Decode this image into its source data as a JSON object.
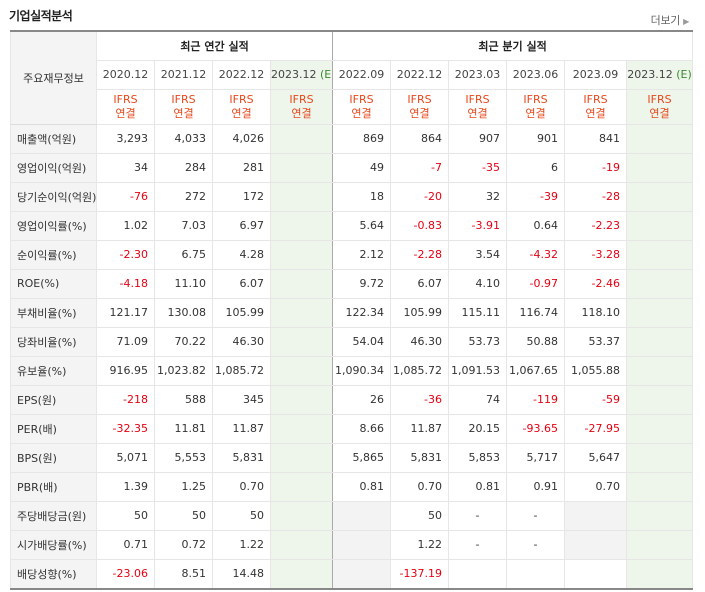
{
  "header": {
    "title": "기업실적분석",
    "more_label": "더보기"
  },
  "table": {
    "corner_label": "주요재무정보",
    "annual_group": "최근 연간 실적",
    "quarter_group": "최근 분기 실적",
    "annual_periods": [
      "2020.12",
      "2021.12",
      "2022.12",
      "2023.12"
    ],
    "quarter_periods": [
      "2022.09",
      "2022.12",
      "2023.03",
      "2023.06",
      "2023.09",
      "2023.12"
    ],
    "estimate_mark": "(E)",
    "ifrs_line1": "IFRS",
    "ifrs_line2": "연결",
    "rows": [
      {
        "label": "매출액(억원)",
        "values": [
          "3,293",
          "4,033",
          "4,026",
          "",
          "869",
          "864",
          "907",
          "901",
          "841",
          ""
        ]
      },
      {
        "label": "영업이익(억원)",
        "values": [
          "34",
          "284",
          "281",
          "",
          "49",
          "-7",
          "-35",
          "6",
          "-19",
          ""
        ]
      },
      {
        "label": "당기순이익(억원)",
        "values": [
          "-76",
          "272",
          "172",
          "",
          "18",
          "-20",
          "32",
          "-39",
          "-28",
          ""
        ]
      },
      {
        "label": "영업이익률(%)",
        "values": [
          "1.02",
          "7.03",
          "6.97",
          "",
          "5.64",
          "-0.83",
          "-3.91",
          "0.64",
          "-2.23",
          ""
        ]
      },
      {
        "label": "순이익률(%)",
        "values": [
          "-2.30",
          "6.75",
          "4.28",
          "",
          "2.12",
          "-2.28",
          "3.54",
          "-4.32",
          "-3.28",
          ""
        ]
      },
      {
        "label": "ROE(%)",
        "values": [
          "-4.18",
          "11.10",
          "6.07",
          "",
          "9.72",
          "6.07",
          "4.10",
          "-0.97",
          "-2.46",
          ""
        ]
      },
      {
        "label": "부채비율(%)",
        "values": [
          "121.17",
          "130.08",
          "105.99",
          "",
          "122.34",
          "105.99",
          "115.11",
          "116.74",
          "118.10",
          ""
        ]
      },
      {
        "label": "당좌비율(%)",
        "values": [
          "71.09",
          "70.22",
          "46.30",
          "",
          "54.04",
          "46.30",
          "53.73",
          "50.88",
          "53.37",
          ""
        ]
      },
      {
        "label": "유보율(%)",
        "values": [
          "916.95",
          "1,023.82",
          "1,085.72",
          "",
          "1,090.34",
          "1,085.72",
          "1,091.53",
          "1,067.65",
          "1,055.88",
          ""
        ]
      },
      {
        "label": "EPS(원)",
        "values": [
          "-218",
          "588",
          "345",
          "",
          "26",
          "-36",
          "74",
          "-119",
          "-59",
          ""
        ]
      },
      {
        "label": "PER(배)",
        "values": [
          "-32.35",
          "11.81",
          "11.87",
          "",
          "8.66",
          "11.87",
          "20.15",
          "-93.65",
          "-27.95",
          ""
        ]
      },
      {
        "label": "BPS(원)",
        "values": [
          "5,071",
          "5,553",
          "5,831",
          "",
          "5,865",
          "5,831",
          "5,853",
          "5,717",
          "5,647",
          ""
        ]
      },
      {
        "label": "PBR(배)",
        "values": [
          "1.39",
          "1.25",
          "0.70",
          "",
          "0.81",
          "0.70",
          "0.81",
          "0.91",
          "0.70",
          ""
        ]
      },
      {
        "label": "주당배당금(원)",
        "values": [
          "50",
          "50",
          "50",
          "",
          "",
          "50",
          "-",
          "-",
          "",
          ""
        ]
      },
      {
        "label": "시가배당률(%)",
        "values": [
          "0.71",
          "0.72",
          "1.22",
          "",
          "",
          "1.22",
          "-",
          "-",
          "",
          ""
        ]
      },
      {
        "label": "배당성향(%)",
        "values": [
          "-23.06",
          "8.51",
          "14.48",
          "",
          "",
          "-137.19",
          "",
          "",
          "",
          ""
        ]
      }
    ]
  }
}
